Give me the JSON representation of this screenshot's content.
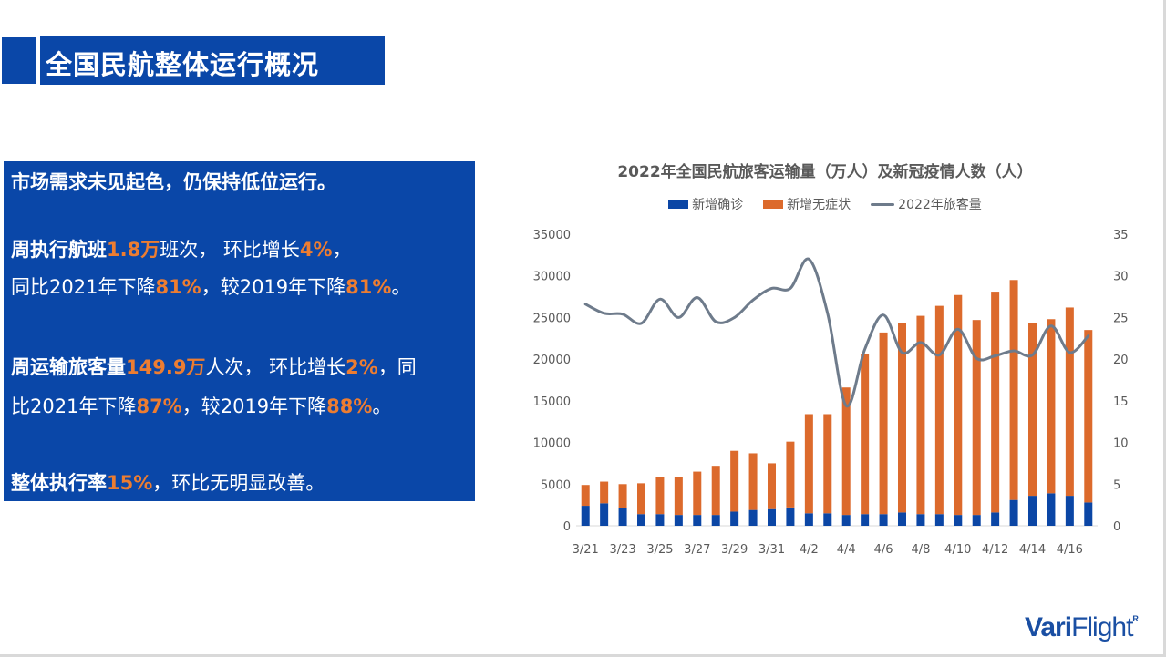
{
  "page": {
    "title": "全国民航整体运行概况"
  },
  "panel": {
    "headline": "市场需求未见起色，仍保持低位运行。",
    "flights": {
      "l1_label": "周执行航班",
      "l1_v1": "1.8万",
      "l1_t1": "班次，",
      "l1_t2": "环比增长",
      "l1_v2": "4%",
      "l1_t3": "，",
      "l2_t1": "同比2021年下降",
      "l2_v1": "81%",
      "l2_t2": "，较2019年下降",
      "l2_v2": "81%",
      "l2_t3": "。"
    },
    "passengers": {
      "l1_label": "周运输旅客量",
      "l1_v1": "149.9万",
      "l1_t1": "人次，",
      "l1_t2": "环比增长",
      "l1_v2": "2%",
      "l1_t3": "，同",
      "l2_t1": "比2021年下降",
      "l2_v1": "87%",
      "l2_t2": "，较2019年下降",
      "l2_v2": "88%",
      "l2_t3": "。"
    },
    "rate": {
      "label": "整体执行率",
      "value": "15%",
      "tail": "，环比无明显改善。"
    }
  },
  "logo": {
    "bold": "Vari",
    "light": "Flight",
    "mark": "R"
  },
  "colors": {
    "brand_blue": "#0a47a8",
    "confirmed": "#0b46a5",
    "asymptomatic": "#dc6a2c",
    "passengers": "#6e7b8b",
    "highlight": "#ed7d31"
  },
  "chart_data": {
    "type": "bar",
    "title": "2022年全国民航旅客运输量（万人）及新冠疫情人数（人）",
    "legend": [
      "新增确诊",
      "新增无症状",
      "2022年旅客量"
    ],
    "legend_position": "top",
    "grid": false,
    "x_tick_labels": [
      "3/21",
      "3/23",
      "3/25",
      "3/27",
      "3/29",
      "3/31",
      "4/2",
      "4/4",
      "4/6",
      "4/8",
      "4/10",
      "4/12",
      "4/14",
      "4/16"
    ],
    "categories": [
      "3/21",
      "3/22",
      "3/23",
      "3/24",
      "3/25",
      "3/26",
      "3/27",
      "3/28",
      "3/29",
      "3/30",
      "3/31",
      "4/1",
      "4/2",
      "4/3",
      "4/4",
      "4/5",
      "4/6",
      "4/7",
      "4/8",
      "4/9",
      "4/10",
      "4/11",
      "4/12",
      "4/13",
      "4/14",
      "4/15",
      "4/16",
      "4/17"
    ],
    "ylim_left": [
      0,
      35000
    ],
    "yticks_left": [
      "0",
      "5000",
      "10000",
      "15000",
      "20000",
      "25000",
      "30000",
      "35000"
    ],
    "ylim_right": [
      0,
      35
    ],
    "yticks_right": [
      "0",
      "5",
      "10",
      "15",
      "20",
      "25",
      "30",
      "35"
    ],
    "stacked": true,
    "series": [
      {
        "name": "新增确诊",
        "axis": "left",
        "values": [
          2400,
          2700,
          2100,
          1400,
          1400,
          1300,
          1300,
          1300,
          1700,
          1900,
          2000,
          2200,
          1500,
          1500,
          1300,
          1400,
          1400,
          1600,
          1400,
          1400,
          1300,
          1300,
          1600,
          3100,
          3600,
          3900,
          3600,
          2800
        ]
      },
      {
        "name": "新增无症状",
        "axis": "left",
        "values": [
          2500,
          2600,
          2900,
          3700,
          4500,
          4500,
          5200,
          5900,
          7300,
          6800,
          5500,
          7900,
          11900,
          11900,
          15300,
          19200,
          21800,
          22700,
          23800,
          25000,
          26400,
          23400,
          26500,
          26400,
          20700,
          20900,
          22600,
          20700
        ]
      },
      {
        "name": "2022年旅客量",
        "axis": "right",
        "type": "line",
        "values": [
          26.6,
          25.5,
          25.4,
          24.3,
          27.2,
          25.0,
          27.4,
          24.5,
          25.0,
          27.1,
          28.5,
          28.5,
          32.0,
          25.5,
          14.4,
          21.2,
          25.3,
          20.8,
          22.0,
          20.5,
          23.6,
          20.1,
          20.4,
          21.0,
          20.5,
          24.0,
          20.8,
          22.8
        ]
      }
    ]
  }
}
